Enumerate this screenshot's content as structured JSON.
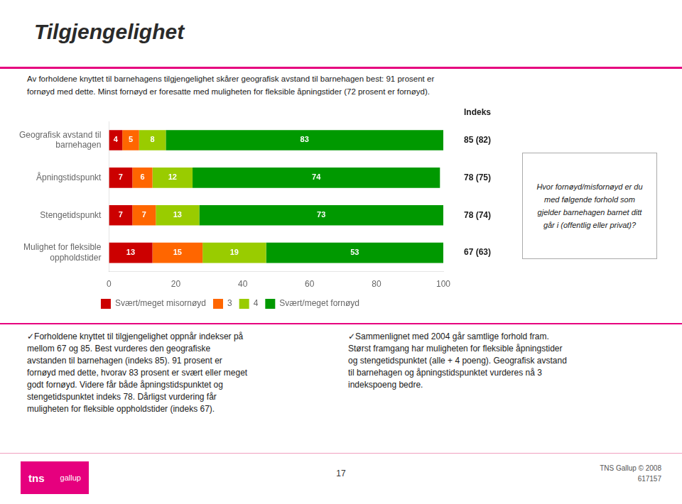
{
  "chart_data": {
    "type": "bar",
    "orientation": "horizontal",
    "stacked": true,
    "data_labels": true,
    "grid": false,
    "legend": "bottom",
    "title": "Tilgjengelighet",
    "subtitle": [
      "Av forholdene knyttet til barnehagens tilgjengelighet skårer geografisk avstand til barnehagen best: 91 prosent er",
      "fornøyd med dette. Minst fornøyd er foresatte med muligheten for fleksible åpningstider (72 prosent er fornøyd)."
    ],
    "categories": [
      "Geografisk avstand til\nbarnehagen",
      "Åpningstidspunkt",
      "Stengetidspunkt",
      "Mulighet for fleksible\noppholdstider"
    ],
    "series": [
      {
        "name": "Svært/meget misornøyd",
        "color": "#cc0000",
        "values": [
          4,
          7,
          7,
          13
        ]
      },
      {
        "name": "3",
        "color": "#ff6600",
        "values": [
          5,
          6,
          7,
          15
        ]
      },
      {
        "name": "4",
        "color": "#99cc00",
        "values": [
          8,
          12,
          13,
          19
        ]
      },
      {
        "name": "Svært/meget fornøyd",
        "color": "#009900",
        "values": [
          83,
          74,
          73,
          53
        ]
      }
    ],
    "xlim": [
      0,
      100
    ],
    "xticks": [
      0,
      20,
      40,
      60,
      80,
      100
    ],
    "index_title": "Indeks",
    "index_labels": [
      "85 (82)",
      "78 (75)",
      "78 (74)",
      "67 (63)"
    ],
    "sidebar_text": "Hvor fornøyd/misfornøyd er du\nmed følgende forhold som\ngjelder barnehagen barnet ditt\ngår i (offentlig eller privat)?",
    "footer_left": [
      "✓Forholdene knyttet til tilgjengelighet oppnår indekser på",
      "mellom 67 og 85. Best vurderes den geografiske",
      "avstanden til barnehagen (indeks 85). 91 prosent er",
      "fornøyd med dette, hvorav 83 prosent er svært eller meget",
      "godt fornøyd. Videre får både åpningstidspunktet og",
      "stengetidspunktet indeks 78. Dårligst vurdering får",
      "muligheten for fleksible oppholdstider (indeks 67)."
    ],
    "footer_right": [
      "✓Sammenlignet med 2004 går samtlige forhold fram.",
      "Størst framgang har muligheten for fleksible åpningstider",
      "og stengetidspunktet (alle + 4 poeng). Geografisk avstand",
      "til barnehagen og åpningstidspunktet vurderes nå 3",
      "indekspoeng bedre."
    ],
    "page_number": "17",
    "brand": "TNS Gallup © 2008\n617157",
    "logo": [
      "tns",
      "gallup"
    ]
  }
}
